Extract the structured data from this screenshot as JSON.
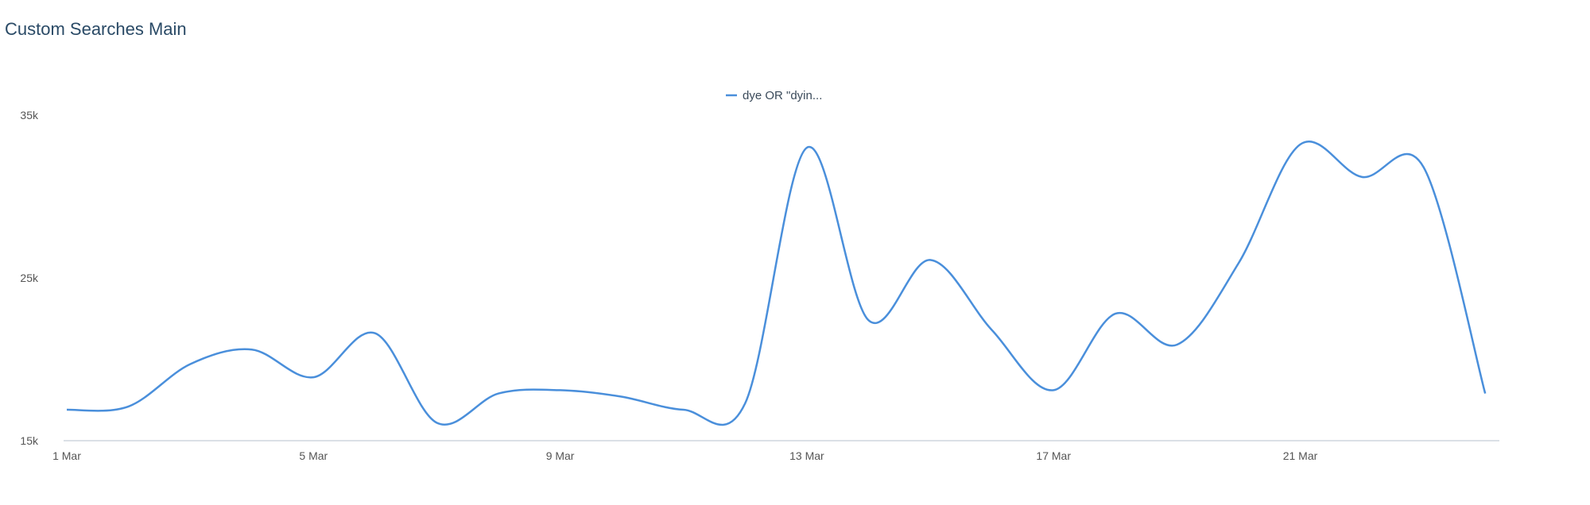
{
  "chart_data": {
    "type": "line",
    "title": "Custom Searches Main",
    "legend_position": "top-center",
    "color": "#4a8fdb",
    "ylim": [
      15000,
      35000
    ],
    "yticks": [
      {
        "value": 15000,
        "label": "15k"
      },
      {
        "value": 25000,
        "label": "25k"
      },
      {
        "value": 35000,
        "label": "35k"
      }
    ],
    "xticks": [
      {
        "day": 1,
        "label": "1 Mar"
      },
      {
        "day": 5,
        "label": "5 Mar"
      },
      {
        "day": 9,
        "label": "9 Mar"
      },
      {
        "day": 13,
        "label": "13 Mar"
      },
      {
        "day": 17,
        "label": "17 Mar"
      },
      {
        "day": 21,
        "label": "21 Mar"
      }
    ],
    "series": [
      {
        "name": "dye OR \"dyin...",
        "points": [
          {
            "day": 1,
            "value": 16900
          },
          {
            "day": 2,
            "value": 17100
          },
          {
            "day": 3,
            "value": 19700
          },
          {
            "day": 4,
            "value": 20600
          },
          {
            "day": 5,
            "value": 18900
          },
          {
            "day": 6,
            "value": 21600
          },
          {
            "day": 7,
            "value": 16100
          },
          {
            "day": 8,
            "value": 17900
          },
          {
            "day": 9,
            "value": 18100
          },
          {
            "day": 10,
            "value": 17700
          },
          {
            "day": 11,
            "value": 16900
          },
          {
            "day": 12,
            "value": 17300
          },
          {
            "day": 13,
            "value": 33000
          },
          {
            "day": 14,
            "value": 22400
          },
          {
            "day": 15,
            "value": 26100
          },
          {
            "day": 16,
            "value": 21800
          },
          {
            "day": 17,
            "value": 18100
          },
          {
            "day": 18,
            "value": 22800
          },
          {
            "day": 19,
            "value": 20900
          },
          {
            "day": 20,
            "value": 25900
          },
          {
            "day": 21,
            "value": 33200
          },
          {
            "day": 22,
            "value": 31200
          },
          {
            "day": 23,
            "value": 31800
          },
          {
            "day": 24,
            "value": 17900
          }
        ]
      }
    ]
  }
}
